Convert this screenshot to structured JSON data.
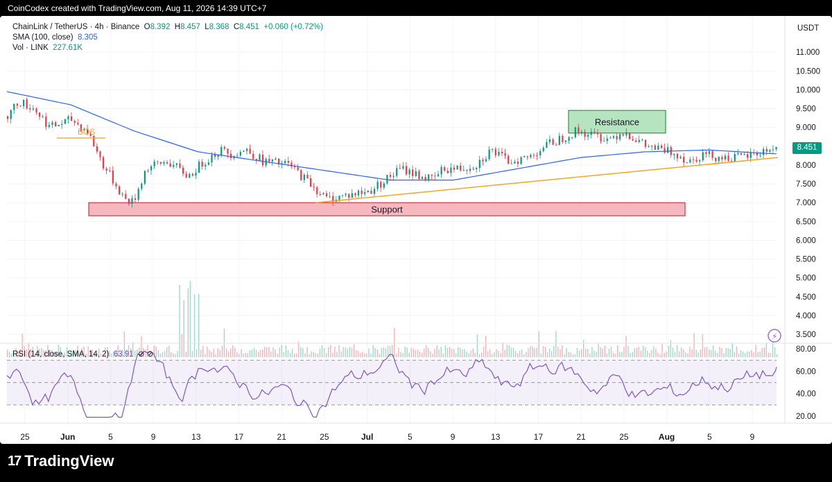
{
  "caption": "CoinCodex created with TradingView.com, Aug 11, 2026 14:39 UTC+7",
  "footer": {
    "logo": "17",
    "brand": "TradingView"
  },
  "legend": {
    "symbol": "ChainLink / TetherUS · 4h · Binance",
    "open_label": "O",
    "open": "8.392",
    "high_label": "H",
    "high": "8.457",
    "low_label": "L",
    "low": "8.368",
    "close_label": "C",
    "close": "8.451",
    "change": "+0.060 (+0.72%)",
    "sma_label": "SMA (100, close)",
    "sma_value": "8.305",
    "vol_label": "Vol · LINK",
    "vol_value": "227.61K"
  },
  "rsi_legend": {
    "label": "RSI (14, close, SMA, 14, 2)",
    "value": "63.91",
    "icons": "⊘ ⊘"
  },
  "colors": {
    "up": "#089981",
    "down": "#f23645",
    "sma": "#2962ff",
    "trend": "#f5a623",
    "rsi": "#7e57c2",
    "support_fill": "#f7b7bf",
    "resistance_fill": "#b7e4c0"
  },
  "chart_data": {
    "type": "candlestick",
    "currency": "USDT",
    "last_price": "8.451",
    "price_axis_ticks": [
      "11.000",
      "10.500",
      "10.000",
      "9.500",
      "9.000",
      "8.500",
      "8.000",
      "7.500",
      "7.000",
      "6.500",
      "6.000",
      "5.500",
      "5.000",
      "4.500",
      "4.000",
      "3.500"
    ],
    "ylim": [
      3.3,
      11.5
    ],
    "x_ticks": [
      "25",
      "Jun",
      "5",
      "9",
      "13",
      "17",
      "21",
      "25",
      "Jul",
      "5",
      "9",
      "13",
      "17",
      "21",
      "25",
      "Aug",
      "5",
      "9"
    ],
    "bars": 250,
    "price_path": [
      [
        0,
        9.3
      ],
      [
        10,
        9.7
      ],
      [
        25,
        9.5
      ],
      [
        40,
        9.0
      ],
      [
        60,
        9.2
      ],
      [
        75,
        8.9
      ],
      [
        90,
        8.0
      ],
      [
        110,
        7.1
      ],
      [
        118,
        7.0
      ],
      [
        130,
        7.9
      ],
      [
        150,
        8.1
      ],
      [
        170,
        7.7
      ],
      [
        185,
        8.1
      ],
      [
        200,
        8.4
      ],
      [
        210,
        8.3
      ],
      [
        225,
        8.4
      ],
      [
        240,
        8.1
      ],
      [
        265,
        8.0
      ],
      [
        285,
        7.5
      ],
      [
        300,
        7.1
      ],
      [
        320,
        7.2
      ],
      [
        340,
        7.3
      ],
      [
        355,
        7.6
      ],
      [
        370,
        7.9
      ],
      [
        390,
        7.7
      ],
      [
        400,
        7.6
      ],
      [
        410,
        7.9
      ],
      [
        425,
        7.9
      ],
      [
        440,
        8.0
      ],
      [
        455,
        8.4
      ],
      [
        470,
        8.1
      ],
      [
        490,
        8.2
      ],
      [
        505,
        8.5
      ],
      [
        520,
        8.7
      ],
      [
        535,
        8.9
      ],
      [
        550,
        8.8
      ],
      [
        565,
        8.7
      ],
      [
        580,
        8.9
      ],
      [
        590,
        8.7
      ],
      [
        600,
        8.5
      ],
      [
        615,
        8.4
      ],
      [
        630,
        8.3
      ],
      [
        640,
        8.1
      ],
      [
        655,
        8.3
      ],
      [
        670,
        8.2
      ],
      [
        690,
        8.2
      ],
      [
        705,
        8.3
      ],
      [
        720,
        8.45
      ]
    ],
    "sma_path": [
      [
        0,
        9.95
      ],
      [
        60,
        9.6
      ],
      [
        120,
        8.9
      ],
      [
        180,
        8.35
      ],
      [
        240,
        8.1
      ],
      [
        300,
        7.85
      ],
      [
        360,
        7.6
      ],
      [
        420,
        7.6
      ],
      [
        480,
        7.9
      ],
      [
        540,
        8.2
      ],
      [
        600,
        8.35
      ],
      [
        660,
        8.4
      ],
      [
        720,
        8.3
      ]
    ],
    "annotations": [
      {
        "type": "zone",
        "label": "Resistance",
        "price_low": 8.85,
        "price_high": 9.45
      },
      {
        "type": "zone",
        "label": "Support",
        "price_low": 6.65,
        "price_high": 7.0
      },
      {
        "type": "label",
        "label": "BOS",
        "price": 8.9
      },
      {
        "type": "trendline",
        "label": "",
        "price_start": 7.0,
        "price_end": 8.2
      }
    ],
    "rsi": {
      "ticks": [
        "80.00",
        "60.00",
        "40.00",
        "20.00"
      ],
      "upper": 70,
      "lower": 30,
      "middle": 50,
      "last": 63.91
    }
  }
}
